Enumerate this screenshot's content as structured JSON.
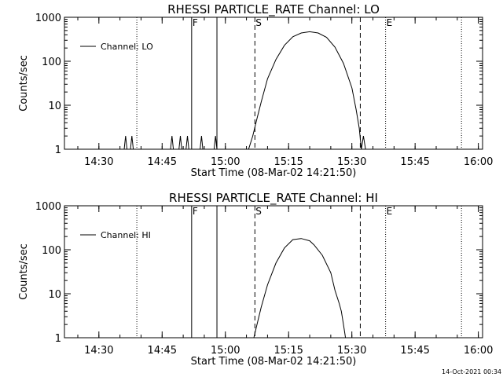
{
  "footer": {
    "timestamp": "14-Oct-2021 00:34"
  },
  "chart_data": [
    {
      "type": "line",
      "title": "RHESSI PARTICLE_RATE Channel: LO",
      "xlabel": "Start Time (08-Mar-02 14:21:50)",
      "ylabel": "Counts/sec",
      "yscale": "log",
      "ylim": [
        1,
        1000
      ],
      "xlim": [
        "14:21:50",
        "16:01:00"
      ],
      "x_ticks": [
        "14:30",
        "14:45",
        "15:00",
        "15:15",
        "15:30",
        "15:45",
        "16:00"
      ],
      "y_ticks": [
        "1",
        "10",
        "100",
        "1000"
      ],
      "legend": {
        "placement": "top-left",
        "entries": [
          "Channel: LO"
        ]
      },
      "markers": [
        {
          "time": "14:39",
          "style": "dotted",
          "label": ""
        },
        {
          "time": "14:52",
          "style": "solid",
          "label": "F"
        },
        {
          "time": "14:58",
          "style": "solid",
          "label": ""
        },
        {
          "time": "15:07",
          "style": "dashed",
          "label": "S"
        },
        {
          "time": "15:32",
          "style": "dashed",
          "label": ""
        },
        {
          "time": "15:38",
          "style": "dotted",
          "label": "E"
        },
        {
          "time": "15:56",
          "style": "dotted",
          "label": ""
        }
      ],
      "series": [
        {
          "name": "Channel: LO",
          "points": [
            [
              "14:36:00",
              1
            ],
            [
              "14:36:20",
              2
            ],
            [
              "14:36:40",
              1
            ],
            [
              "14:37:30",
              1
            ],
            [
              "14:37:50",
              2
            ],
            [
              "14:38:10",
              1
            ],
            [
              "14:47:00",
              1
            ],
            [
              "14:47:20",
              2
            ],
            [
              "14:47:40",
              1
            ],
            [
              "14:49:00",
              1
            ],
            [
              "14:49:20",
              2
            ],
            [
              "14:49:40",
              1
            ],
            [
              "14:50:40",
              1
            ],
            [
              "14:51:00",
              2
            ],
            [
              "14:51:20",
              1
            ],
            [
              "14:54:00",
              1
            ],
            [
              "14:54:20",
              2
            ],
            [
              "14:54:40",
              1
            ],
            [
              "14:57:20",
              1
            ],
            [
              "14:57:40",
              2
            ],
            [
              "14:58:00",
              1
            ],
            [
              "15:05:30",
              1
            ],
            [
              "15:06:30",
              2
            ],
            [
              "15:07:30",
              5
            ],
            [
              "15:08:30",
              12
            ],
            [
              "15:10:00",
              40
            ],
            [
              "15:12:00",
              110
            ],
            [
              "15:14:00",
              230
            ],
            [
              "15:16:00",
              360
            ],
            [
              "15:18:00",
              440
            ],
            [
              "15:20:00",
              470
            ],
            [
              "15:22:00",
              440
            ],
            [
              "15:24:00",
              350
            ],
            [
              "15:26:00",
              210
            ],
            [
              "15:28:00",
              90
            ],
            [
              "15:30:00",
              25
            ],
            [
              "15:31:00",
              8
            ],
            [
              "15:31:45",
              3
            ],
            [
              "15:32:15",
              1
            ],
            [
              "15:32:45",
              2
            ],
            [
              "15:33:15",
              1
            ]
          ]
        }
      ]
    },
    {
      "type": "line",
      "title": "RHESSI PARTICLE_RATE Channel: HI",
      "xlabel": "Start Time (08-Mar-02 14:21:50)",
      "ylabel": "Counts/sec",
      "yscale": "log",
      "ylim": [
        1,
        1000
      ],
      "xlim": [
        "14:21:50",
        "16:01:00"
      ],
      "x_ticks": [
        "14:30",
        "14:45",
        "15:00",
        "15:15",
        "15:30",
        "15:45",
        "16:00"
      ],
      "y_ticks": [
        "1",
        "10",
        "100",
        "1000"
      ],
      "legend": {
        "placement": "top-left",
        "entries": [
          "Channel: HI"
        ]
      },
      "markers": [
        {
          "time": "14:39",
          "style": "dotted",
          "label": ""
        },
        {
          "time": "14:52",
          "style": "solid",
          "label": "F"
        },
        {
          "time": "14:58",
          "style": "solid",
          "label": ""
        },
        {
          "time": "15:07",
          "style": "dashed",
          "label": "S"
        },
        {
          "time": "15:32",
          "style": "dashed",
          "label": ""
        },
        {
          "time": "15:38",
          "style": "dotted",
          "label": "E"
        },
        {
          "time": "15:56",
          "style": "dotted",
          "label": ""
        }
      ],
      "series": [
        {
          "name": "Channel: HI",
          "points": [
            [
              "15:06:45",
              1
            ],
            [
              "15:07:30",
              2
            ],
            [
              "15:08:30",
              5
            ],
            [
              "15:10:00",
              16
            ],
            [
              "15:12:00",
              50
            ],
            [
              "15:14:00",
              110
            ],
            [
              "15:16:00",
              170
            ],
            [
              "15:18:00",
              180
            ],
            [
              "15:20:00",
              160
            ],
            [
              "15:21:00",
              130
            ],
            [
              "15:23:00",
              75
            ],
            [
              "15:25:00",
              30
            ],
            [
              "15:26:00",
              12
            ],
            [
              "15:27:00",
              6
            ],
            [
              "15:27:30",
              4
            ],
            [
              "15:28:00",
              2
            ],
            [
              "15:28:30",
              1
            ]
          ]
        }
      ]
    }
  ]
}
